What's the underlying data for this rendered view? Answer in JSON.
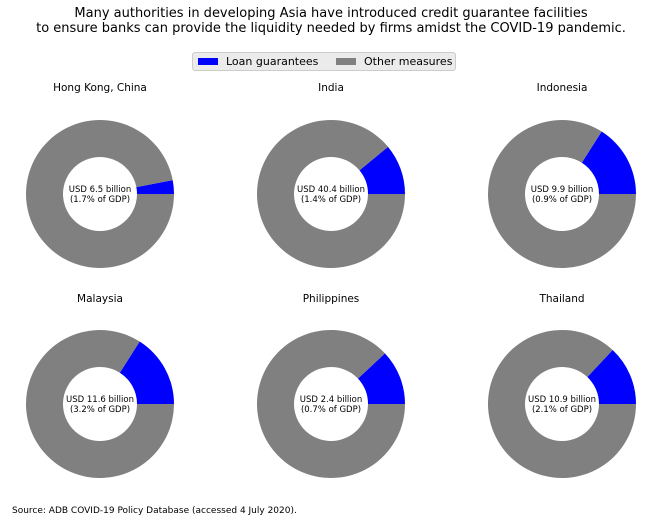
{
  "title_lines": [
    "Many authorities in developing Asia have introduced credit guarantee facilities",
    "to ensure banks can provide the liquidity needed by firms amidst the COVID-19 pandemic."
  ],
  "legend": [
    {
      "label": "Loan guarantees",
      "color": "#0000ff"
    },
    {
      "label": "Other measures",
      "color": "#808080"
    }
  ],
  "source": "Source: ADB COVID-19 Policy Database (accessed 4 July 2020).",
  "chart_data": {
    "type": "pie",
    "style": "donut",
    "legend_position": "top-center",
    "series_names": [
      "Loan guarantees",
      "Other measures"
    ],
    "colors": {
      "Loan guarantees": "#0000ff",
      "Other measures": "#808080"
    },
    "panels": [
      {
        "title": "Hong Kong, China",
        "center_line1": "USD 6.5 billion",
        "center_line2": "(1.7% of GDP)",
        "loan_guarantees_share": 0.03,
        "other_measures_share": 0.97
      },
      {
        "title": "India",
        "center_line1": "USD 40.4 billion",
        "center_line2": "(1.4% of GDP)",
        "loan_guarantees_share": 0.11,
        "other_measures_share": 0.89
      },
      {
        "title": "Indonesia",
        "center_line1": "USD 9.9 billion",
        "center_line2": "(0.9% of GDP)",
        "loan_guarantees_share": 0.16,
        "other_measures_share": 0.84
      },
      {
        "title": "Malaysia",
        "center_line1": "USD 11.6 billion",
        "center_line2": "(3.2% of GDP)",
        "loan_guarantees_share": 0.16,
        "other_measures_share": 0.84
      },
      {
        "title": "Philippines",
        "center_line1": "USD 2.4 billion",
        "center_line2": "(0.7% of GDP)",
        "loan_guarantees_share": 0.12,
        "other_measures_share": 0.88
      },
      {
        "title": "Thailand",
        "center_line1": "USD 10.9 billion",
        "center_line2": "(2.1% of GDP)",
        "loan_guarantees_share": 0.13,
        "other_measures_share": 0.87
      }
    ]
  }
}
